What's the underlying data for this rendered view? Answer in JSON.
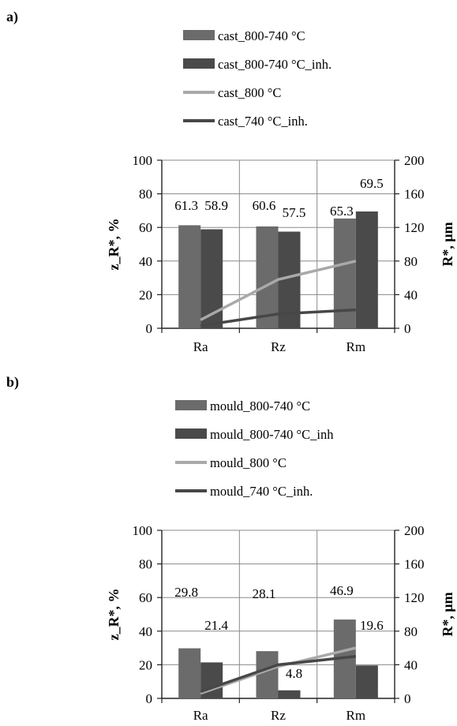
{
  "chart_data": [
    {
      "panel_label": "a)",
      "type": "bar",
      "categories": [
        "Ra",
        "Rz",
        "Rm"
      ],
      "ylabel_left": "z_R*, %",
      "ylabel_right": "R*, μm",
      "ylim_left": [
        0,
        100
      ],
      "ylim_right": [
        0,
        200
      ],
      "yticks_left": [
        0,
        20,
        40,
        60,
        80,
        100
      ],
      "yticks_right": [
        0,
        40,
        80,
        120,
        160,
        200
      ],
      "grid": true,
      "legend_position": "top",
      "series": [
        {
          "name": "cast_800-740 °C",
          "kind": "bar",
          "axis": "left",
          "color": "#6b6b6b",
          "values": [
            61.3,
            60.6,
            65.3
          ],
          "labels": [
            "61.3",
            "60.6",
            "65.3"
          ]
        },
        {
          "name": "cast_800-740 °C_inh.",
          "kind": "bar",
          "axis": "left",
          "color": "#4a4a4a",
          "values": [
            58.9,
            57.5,
            69.5
          ],
          "labels": [
            "58.9",
            "57.5",
            "69.5"
          ]
        },
        {
          "name": "cast_800 °C",
          "kind": "line",
          "axis": "right",
          "color": "#a9a9a9",
          "values": [
            10,
            58,
            80
          ]
        },
        {
          "name": "cast_740 °C_inh.",
          "kind": "line",
          "axis": "right",
          "color": "#474747",
          "values": [
            3,
            17,
            22
          ]
        }
      ]
    },
    {
      "panel_label": "b)",
      "type": "bar",
      "categories": [
        "Ra",
        "Rz",
        "Rm"
      ],
      "ylabel_left": "z_R*, %",
      "ylabel_right": "R*, μm",
      "ylim_left": [
        0,
        100
      ],
      "ylim_right": [
        0,
        200
      ],
      "yticks_left": [
        0,
        20,
        40,
        60,
        80,
        100
      ],
      "yticks_right": [
        0,
        40,
        80,
        120,
        160,
        200
      ],
      "grid": true,
      "legend_position": "top",
      "series": [
        {
          "name": "mould_800-740 °C",
          "kind": "bar",
          "axis": "left",
          "color": "#6b6b6b",
          "values": [
            29.8,
            28.1,
            46.9
          ],
          "labels": [
            "29.8",
            "28.1",
            "46.9"
          ]
        },
        {
          "name": "mould_800-740 °C_inh",
          "kind": "bar",
          "axis": "left",
          "color": "#4a4a4a",
          "values": [
            21.4,
            4.8,
            19.6
          ],
          "labels": [
            "21.4",
            "4.8",
            "19.6"
          ]
        },
        {
          "name": "mould_800 °C",
          "kind": "line",
          "axis": "right",
          "color": "#a9a9a9",
          "values": [
            6,
            38,
            60
          ]
        },
        {
          "name": "mould_740 °C_inh.",
          "kind": "line",
          "axis": "right",
          "color": "#474747",
          "values": [
            8,
            40,
            50
          ]
        }
      ]
    }
  ]
}
